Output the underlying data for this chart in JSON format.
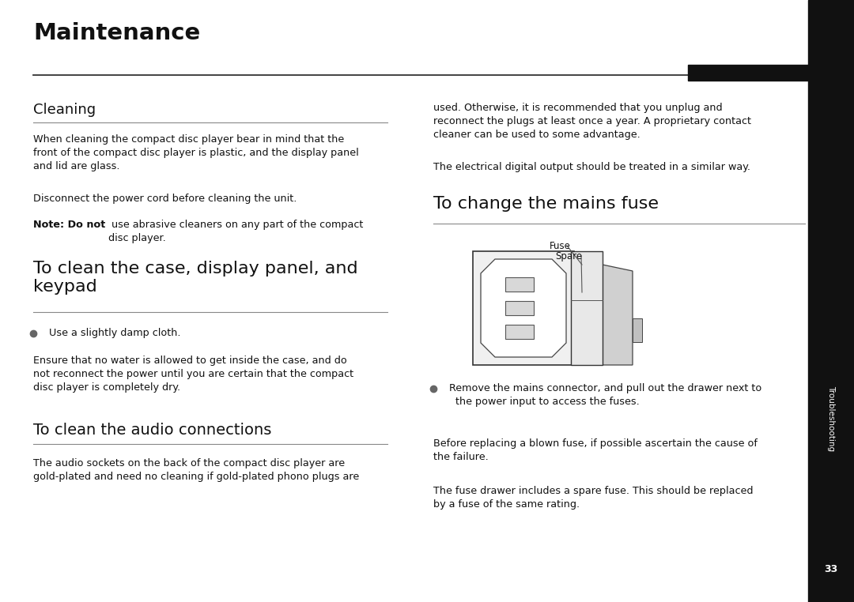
{
  "bg_color": "#ffffff",
  "sidebar_color": "#111111",
  "title": "Maintenance",
  "sidebar_text": "Troubleshooting",
  "page_num": "33",
  "fig_w": 10.8,
  "fig_h": 7.62,
  "dpi": 100
}
